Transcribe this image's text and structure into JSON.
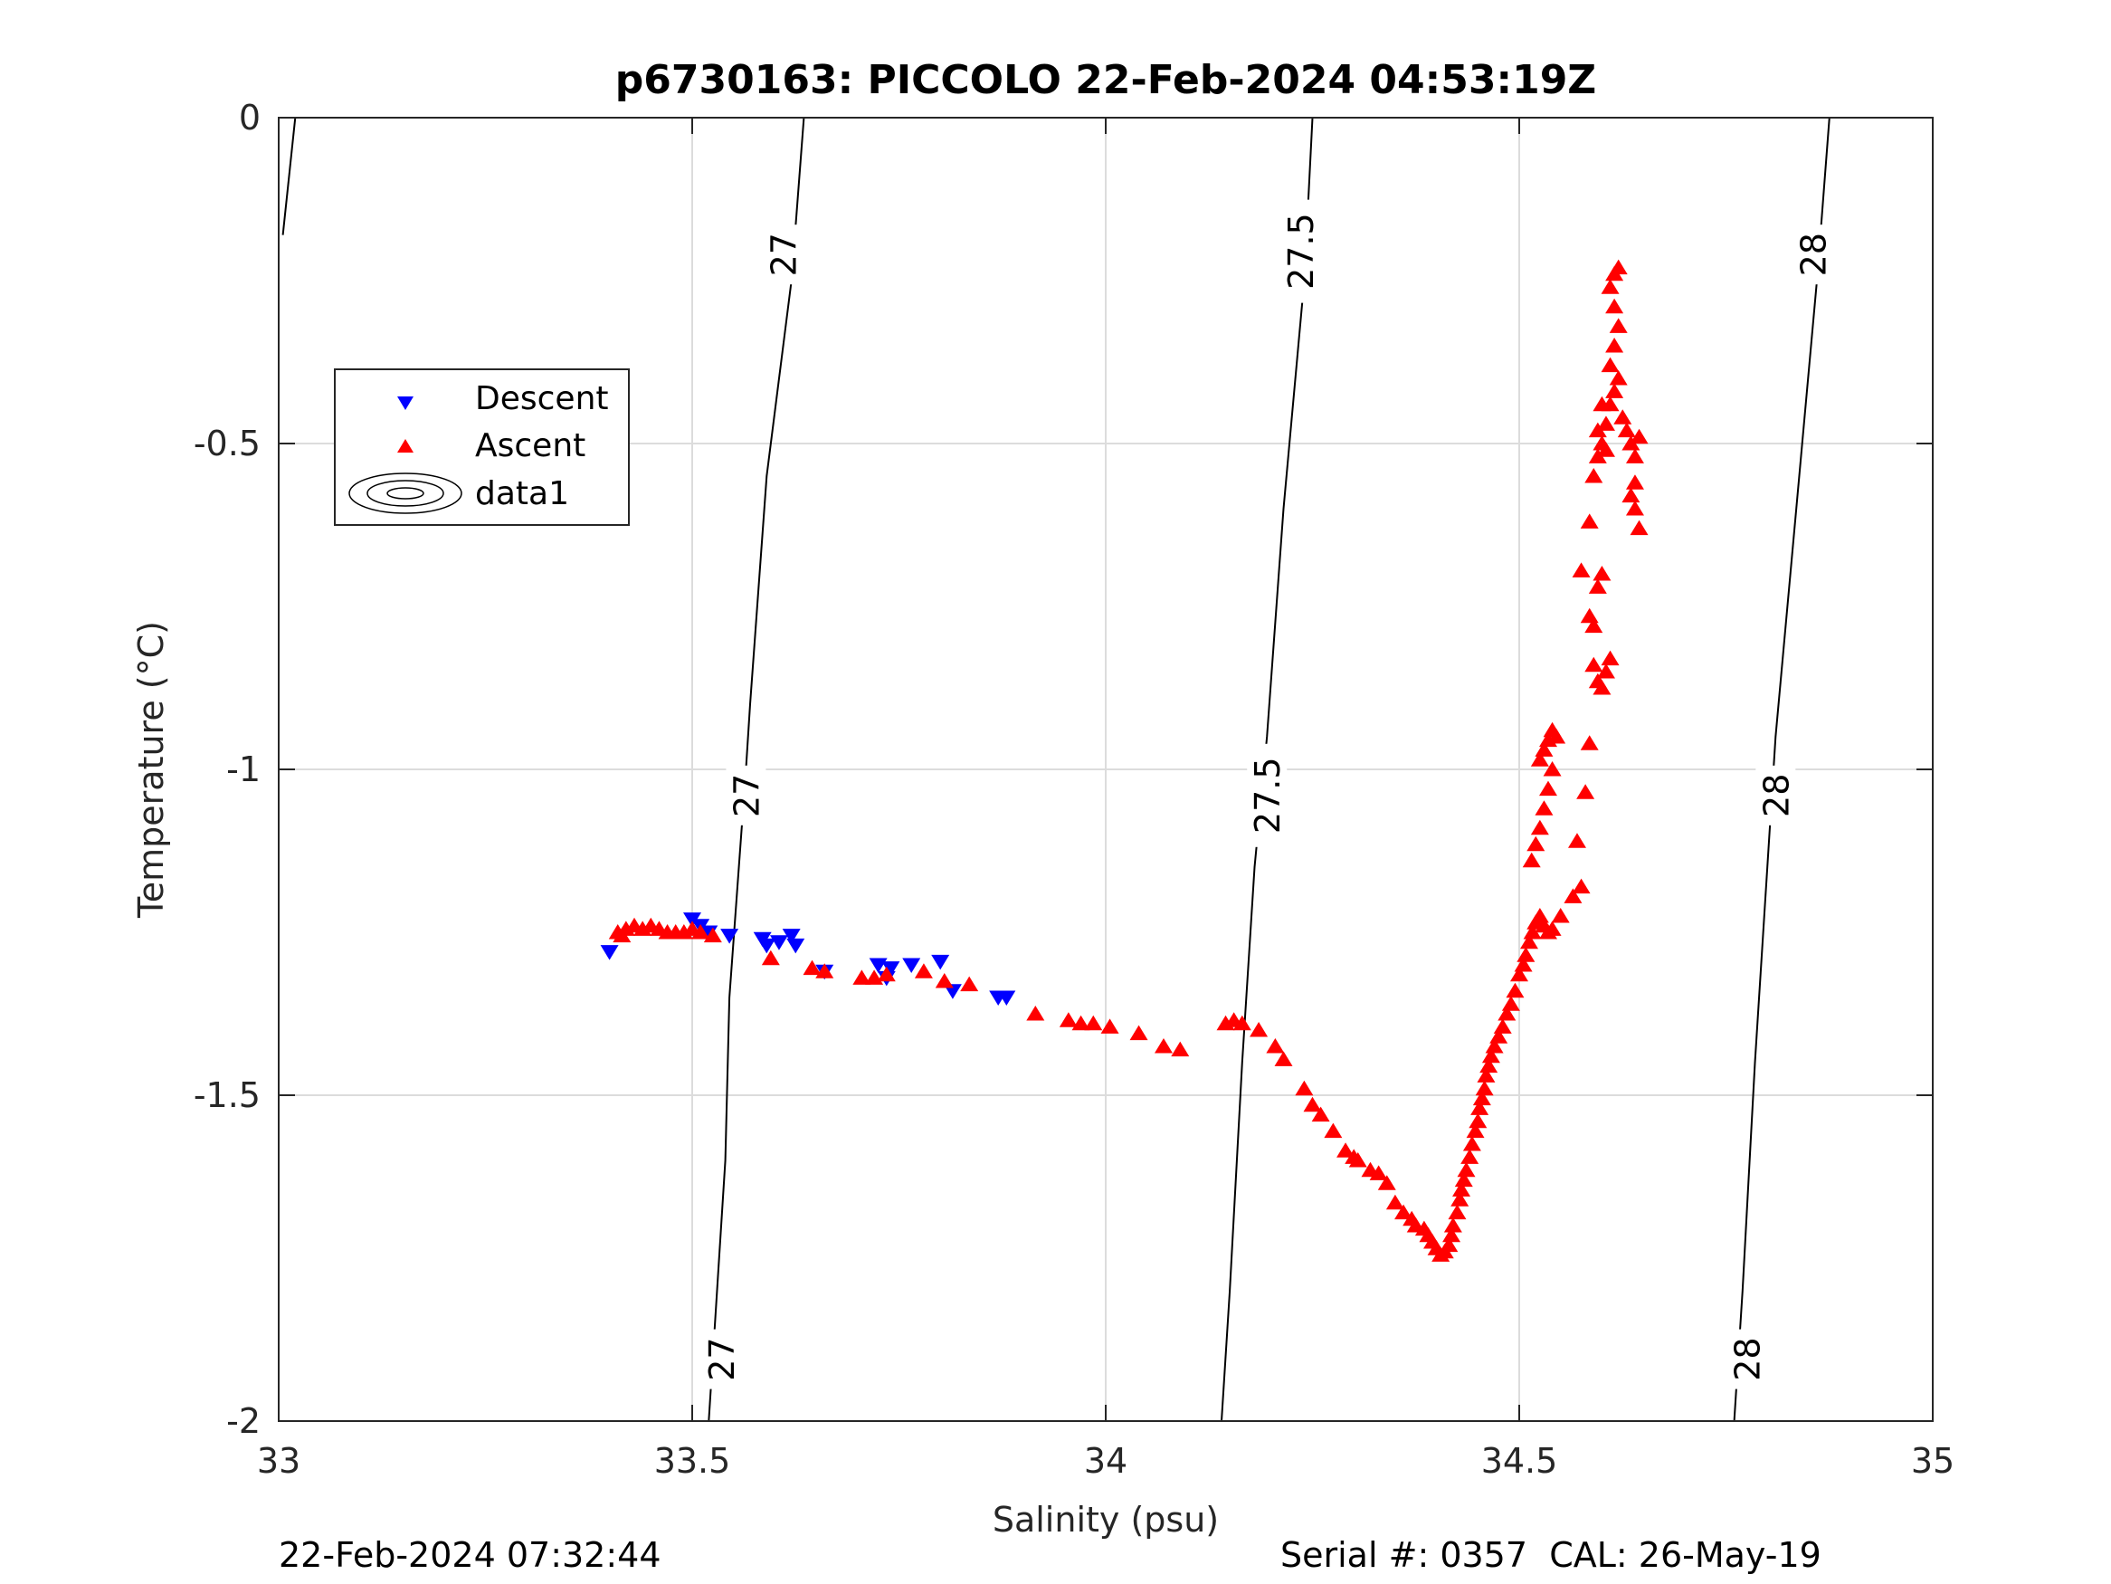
{
  "chart_data": {
    "type": "scatter",
    "title": "p6730163: PICCOLO 22-Feb-2024 04:53:19Z",
    "xlabel": "Salinity (psu)",
    "ylabel": "Temperature (°C)",
    "xlim": [
      33,
      35
    ],
    "ylim": [
      -2,
      0
    ],
    "xticks": [
      "33",
      "33.5",
      "34",
      "34.5",
      "35"
    ],
    "yticks": [
      "0",
      "-0.5",
      "-1",
      "-1.5",
      "-2"
    ],
    "grid": true,
    "legend_position": "upper-left",
    "legend": [
      "Descent",
      "Ascent",
      "data1"
    ],
    "colors": {
      "descent": "#0000ff",
      "ascent": "#ff0000",
      "contour": "#000000"
    },
    "series": [
      {
        "name": "Descent",
        "marker": "triangle-down",
        "color": "#0000ff",
        "points": [
          [
            33.4,
            -1.28
          ],
          [
            33.5,
            -1.23
          ],
          [
            33.51,
            -1.24
          ],
          [
            33.52,
            -1.25
          ],
          [
            33.545,
            -1.255
          ],
          [
            33.585,
            -1.26
          ],
          [
            33.59,
            -1.27
          ],
          [
            33.605,
            -1.265
          ],
          [
            33.62,
            -1.255
          ],
          [
            33.625,
            -1.27
          ],
          [
            33.66,
            -1.31
          ],
          [
            33.725,
            -1.3
          ],
          [
            33.74,
            -1.305
          ],
          [
            33.735,
            -1.32
          ],
          [
            33.765,
            -1.3
          ],
          [
            33.8,
            -1.295
          ],
          [
            33.815,
            -1.34
          ],
          [
            33.87,
            -1.35
          ],
          [
            33.88,
            -1.35
          ]
        ]
      },
      {
        "name": "Ascent",
        "marker": "triangle-up",
        "color": "#ff0000",
        "points": [
          [
            33.41,
            -1.25
          ],
          [
            33.415,
            -1.255
          ],
          [
            33.42,
            -1.245
          ],
          [
            33.43,
            -1.24
          ],
          [
            33.44,
            -1.245
          ],
          [
            33.45,
            -1.24
          ],
          [
            33.46,
            -1.245
          ],
          [
            33.47,
            -1.25
          ],
          [
            33.48,
            -1.25
          ],
          [
            33.49,
            -1.25
          ],
          [
            33.5,
            -1.245
          ],
          [
            33.51,
            -1.25
          ],
          [
            33.525,
            -1.255
          ],
          [
            33.595,
            -1.29
          ],
          [
            33.645,
            -1.305
          ],
          [
            33.66,
            -1.31
          ],
          [
            33.705,
            -1.32
          ],
          [
            33.72,
            -1.32
          ],
          [
            33.735,
            -1.315
          ],
          [
            33.78,
            -1.31
          ],
          [
            33.805,
            -1.325
          ],
          [
            33.835,
            -1.33
          ],
          [
            33.915,
            -1.375
          ],
          [
            33.955,
            -1.385
          ],
          [
            33.97,
            -1.39
          ],
          [
            33.985,
            -1.39
          ],
          [
            34.005,
            -1.395
          ],
          [
            34.04,
            -1.405
          ],
          [
            34.07,
            -1.425
          ],
          [
            34.09,
            -1.43
          ],
          [
            34.145,
            -1.39
          ],
          [
            34.155,
            -1.385
          ],
          [
            34.165,
            -1.39
          ],
          [
            34.185,
            -1.4
          ],
          [
            34.205,
            -1.425
          ],
          [
            34.215,
            -1.445
          ],
          [
            34.24,
            -1.49
          ],
          [
            34.25,
            -1.515
          ],
          [
            34.26,
            -1.53
          ],
          [
            34.275,
            -1.555
          ],
          [
            34.29,
            -1.585
          ],
          [
            34.3,
            -1.595
          ],
          [
            34.305,
            -1.6
          ],
          [
            34.32,
            -1.615
          ],
          [
            34.33,
            -1.62
          ],
          [
            34.34,
            -1.635
          ],
          [
            34.35,
            -1.665
          ],
          [
            34.36,
            -1.68
          ],
          [
            34.37,
            -1.69
          ],
          [
            34.375,
            -1.7
          ],
          [
            34.385,
            -1.705
          ],
          [
            34.39,
            -1.715
          ],
          [
            34.395,
            -1.725
          ],
          [
            34.4,
            -1.735
          ],
          [
            34.405,
            -1.745
          ],
          [
            34.41,
            -1.74
          ],
          [
            34.415,
            -1.73
          ],
          [
            34.418,
            -1.715
          ],
          [
            34.42,
            -1.7
          ],
          [
            34.425,
            -1.68
          ],
          [
            34.428,
            -1.66
          ],
          [
            34.43,
            -1.645
          ],
          [
            34.433,
            -1.63
          ],
          [
            34.436,
            -1.615
          ],
          [
            34.44,
            -1.595
          ],
          [
            34.443,
            -1.575
          ],
          [
            34.447,
            -1.555
          ],
          [
            34.45,
            -1.54
          ],
          [
            34.452,
            -1.52
          ],
          [
            34.455,
            -1.505
          ],
          [
            34.458,
            -1.49
          ],
          [
            34.46,
            -1.47
          ],
          [
            34.463,
            -1.455
          ],
          [
            34.466,
            -1.44
          ],
          [
            34.47,
            -1.425
          ],
          [
            34.475,
            -1.41
          ],
          [
            34.48,
            -1.395
          ],
          [
            34.485,
            -1.375
          ],
          [
            34.49,
            -1.36
          ],
          [
            34.495,
            -1.34
          ],
          [
            34.5,
            -1.315
          ],
          [
            34.505,
            -1.3
          ],
          [
            34.508,
            -1.285
          ],
          [
            34.512,
            -1.265
          ],
          [
            34.516,
            -1.25
          ],
          [
            34.52,
            -1.235
          ],
          [
            34.525,
            -1.225
          ],
          [
            34.53,
            -1.24
          ],
          [
            34.535,
            -1.25
          ],
          [
            34.54,
            -1.245
          ],
          [
            34.55,
            -1.225
          ],
          [
            34.565,
            -1.195
          ],
          [
            34.575,
            -1.18
          ],
          [
            34.57,
            -1.11
          ],
          [
            34.58,
            -1.035
          ],
          [
            34.585,
            -0.96
          ],
          [
            34.515,
            -1.14
          ],
          [
            34.52,
            -1.115
          ],
          [
            34.525,
            -1.09
          ],
          [
            34.53,
            -1.06
          ],
          [
            34.535,
            -1.03
          ],
          [
            34.54,
            -1.0
          ],
          [
            34.525,
            -0.985
          ],
          [
            34.53,
            -0.97
          ],
          [
            34.535,
            -0.955
          ],
          [
            34.54,
            -0.94
          ],
          [
            34.545,
            -0.95
          ],
          [
            34.59,
            -0.84
          ],
          [
            34.595,
            -0.865
          ],
          [
            34.6,
            -0.875
          ],
          [
            34.605,
            -0.85
          ],
          [
            34.61,
            -0.83
          ],
          [
            34.585,
            -0.765
          ],
          [
            34.59,
            -0.78
          ],
          [
            34.595,
            -0.72
          ],
          [
            34.6,
            -0.7
          ],
          [
            34.575,
            -0.695
          ],
          [
            34.585,
            -0.62
          ],
          [
            34.59,
            -0.55
          ],
          [
            34.595,
            -0.52
          ],
          [
            34.6,
            -0.5
          ],
          [
            34.605,
            -0.47
          ],
          [
            34.61,
            -0.44
          ],
          [
            34.615,
            -0.42
          ],
          [
            34.62,
            -0.4
          ],
          [
            34.61,
            -0.38
          ],
          [
            34.615,
            -0.35
          ],
          [
            34.62,
            -0.32
          ],
          [
            34.615,
            -0.29
          ],
          [
            34.61,
            -0.26
          ],
          [
            34.615,
            -0.24
          ],
          [
            34.62,
            -0.23
          ],
          [
            34.625,
            -0.46
          ],
          [
            34.63,
            -0.48
          ],
          [
            34.635,
            -0.5
          ],
          [
            34.64,
            -0.52
          ],
          [
            34.645,
            -0.49
          ],
          [
            34.64,
            -0.56
          ],
          [
            34.635,
            -0.58
          ],
          [
            34.64,
            -0.6
          ],
          [
            34.645,
            -0.63
          ],
          [
            34.6,
            -0.44
          ],
          [
            34.605,
            -0.51
          ],
          [
            34.595,
            -0.48
          ]
        ]
      }
    ],
    "contours": [
      {
        "level": "27",
        "points": [
          [
            33.635,
            0
          ],
          [
            33.62,
            -0.25
          ],
          [
            33.59,
            -0.55
          ],
          [
            33.57,
            -0.9
          ],
          [
            33.565,
            -1.0
          ],
          [
            33.545,
            -1.35
          ],
          [
            33.54,
            -1.6
          ],
          [
            33.52,
            -2.0
          ]
        ]
      },
      {
        "level": "27.5",
        "points": [
          [
            34.25,
            0
          ],
          [
            34.24,
            -0.25
          ],
          [
            34.215,
            -0.6
          ],
          [
            34.195,
            -0.95
          ],
          [
            34.18,
            -1.15
          ],
          [
            34.165,
            -1.45
          ],
          [
            34.15,
            -1.8
          ],
          [
            34.14,
            -2.0
          ]
        ]
      },
      {
        "level": "28",
        "points": [
          [
            34.875,
            0
          ],
          [
            34.86,
            -0.25
          ],
          [
            34.835,
            -0.6
          ],
          [
            34.81,
            -0.95
          ],
          [
            34.8,
            -1.15
          ],
          [
            34.785,
            -1.45
          ],
          [
            34.77,
            -1.8
          ],
          [
            34.76,
            -2.0
          ]
        ]
      },
      {
        "level": "",
        "points": [
          [
            33.005,
            -0.18
          ],
          [
            33.02,
            0
          ]
        ]
      }
    ],
    "contour_labels": [
      {
        "text": "27",
        "x": 33.61,
        "y": -0.21
      },
      {
        "text": "27",
        "x": 33.565,
        "y": -1.04
      },
      {
        "text": "27",
        "x": 33.535,
        "y": -1.905
      },
      {
        "text": "27.5",
        "x": 34.235,
        "y": -0.205
      },
      {
        "text": "27.5",
        "x": 34.195,
        "y": -1.04
      },
      {
        "text": "28",
        "x": 34.855,
        "y": -0.21
      },
      {
        "text": "28",
        "x": 34.81,
        "y": -1.04
      },
      {
        "text": "28",
        "x": 34.775,
        "y": -1.905
      }
    ]
  },
  "footer": {
    "left": "22-Feb-2024 07:32:44",
    "right": "Serial #: 0357  CAL: 26-May-19"
  }
}
